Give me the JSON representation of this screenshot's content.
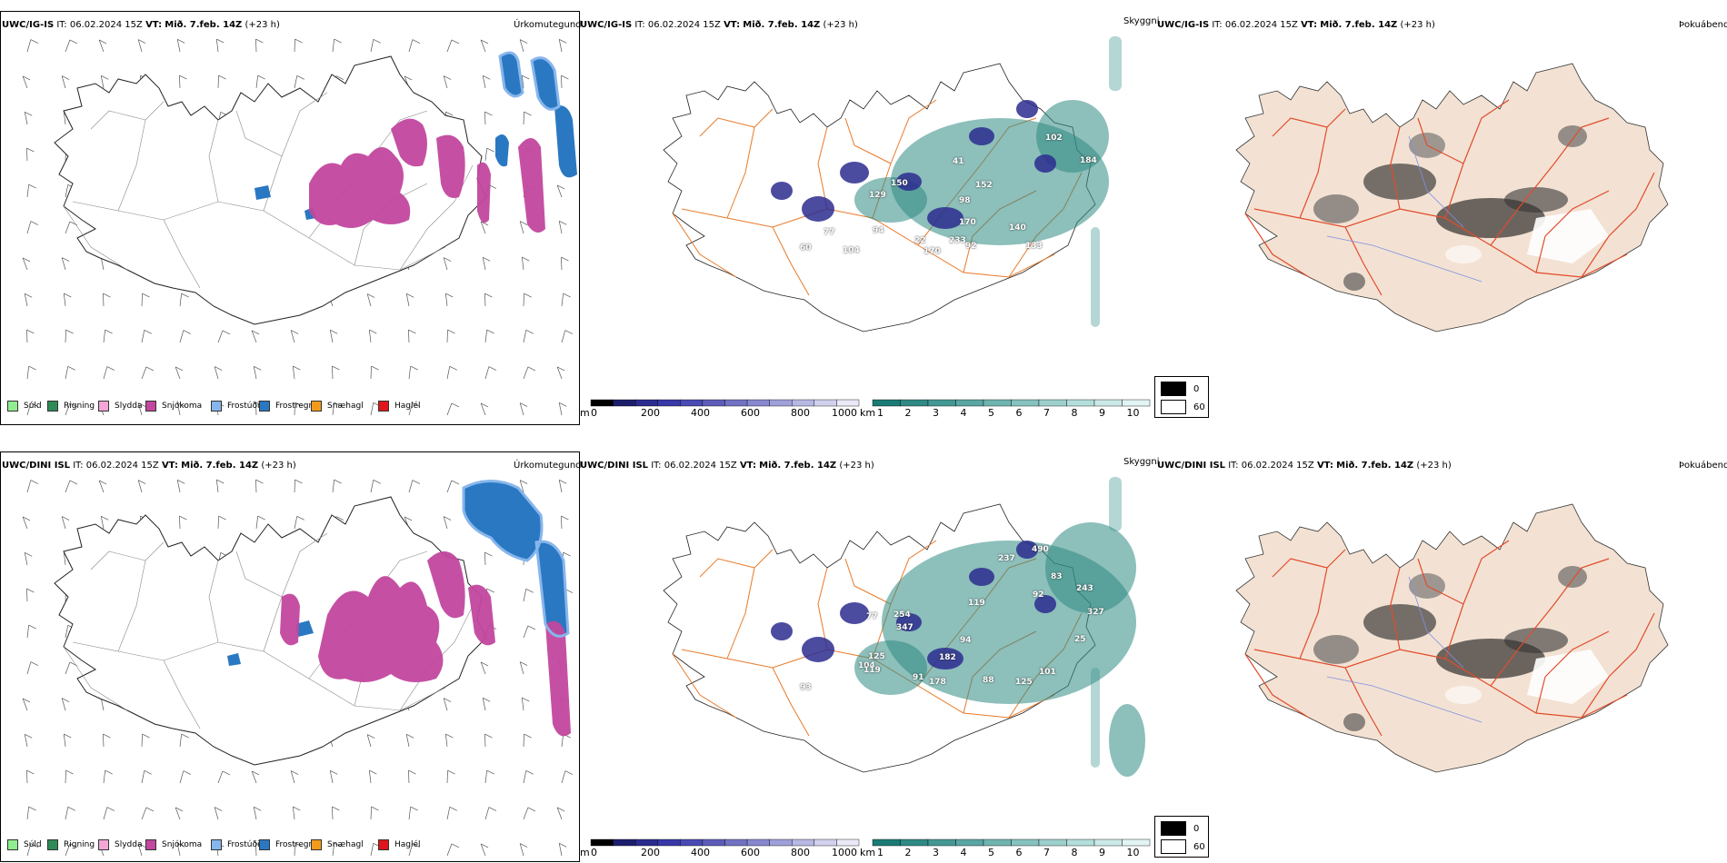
{
  "rows": [
    {
      "model": "UWC/IG-IS",
      "it_label": "IT:",
      "it_value": "06.02.2024 15Z",
      "vt_label": "VT:",
      "vt_value": "Mið. 7.feb. 14Z",
      "lead": "(+23 h)"
    },
    {
      "model": "UWC/DINI ISL",
      "it_label": "IT:",
      "it_value": "06.02.2024 15Z",
      "vt_label": "VT:",
      "vt_value": "Mið. 7.feb. 14Z",
      "lead": "(+23 h)"
    }
  ],
  "panel_types": {
    "precip": "Úrkomutegund",
    "visibility": "Skyggni",
    "fog": "Þokuábendi"
  },
  "precip_legend": [
    {
      "label": "Súld",
      "color": "#90ee90"
    },
    {
      "label": "Rigning",
      "color": "#2e8b57"
    },
    {
      "label": "Slydda",
      "color": "#f4a6d7"
    },
    {
      "label": "Snjókoma",
      "color": "#c2479e"
    },
    {
      "label": "Frostúði",
      "color": "#87b6ec"
    },
    {
      "label": "Frostregn",
      "color": "#2a78c2"
    },
    {
      "label": "Snæhagl",
      "color": "#f39a1b"
    },
    {
      "label": "Haglél",
      "color": "#e0161b"
    }
  ],
  "cloud_base_scale": {
    "unit": "m",
    "ticks": [
      "0",
      "200",
      "400",
      "600",
      "800",
      "1000"
    ],
    "colors": [
      "#000000",
      "#1d1d6e",
      "#2b2b8f",
      "#3838a8",
      "#4a4ab5",
      "#5d5db9",
      "#7272c4",
      "#8888cf",
      "#9f9fd9",
      "#b8b8e4",
      "#d1d1ee",
      "#e9e9f7"
    ]
  },
  "visibility_scale": {
    "unit": "km",
    "ticks": [
      "1",
      "2",
      "3",
      "4",
      "5",
      "6",
      "7",
      "8",
      "9",
      "10"
    ],
    "colors": [
      "#1b7b75",
      "#2f8a84",
      "#449893",
      "#5aa6a2",
      "#70b4b0",
      "#86c2bf",
      "#9dd0cd",
      "#b4dedb",
      "#cbe9e7",
      "#e2f4f3"
    ]
  },
  "fog_legend": [
    {
      "label": "0",
      "color": "#000000"
    },
    {
      "label": "60",
      "color": "#ffffff"
    }
  ],
  "cloud_base_values": [
    [
      "102",
      "184",
      "41",
      "152",
      "150",
      "98",
      "129",
      "170",
      "94",
      "77",
      "22",
      "233",
      "92",
      "140",
      "133",
      "60",
      "170",
      "104"
    ],
    [
      "490",
      "237",
      "83",
      "243",
      "92",
      "119",
      "327",
      "94",
      "25",
      "77",
      "254",
      "347",
      "182",
      "104",
      "125",
      "119",
      "91",
      "178",
      "88",
      "125",
      "93",
      "101"
    ]
  ],
  "colors": {
    "land_fog": "#f3e2d3",
    "roads": "#e87a2a",
    "roads_fog": "#e14b2c",
    "rivers": "#7f8fe6",
    "coast": "#111111"
  }
}
